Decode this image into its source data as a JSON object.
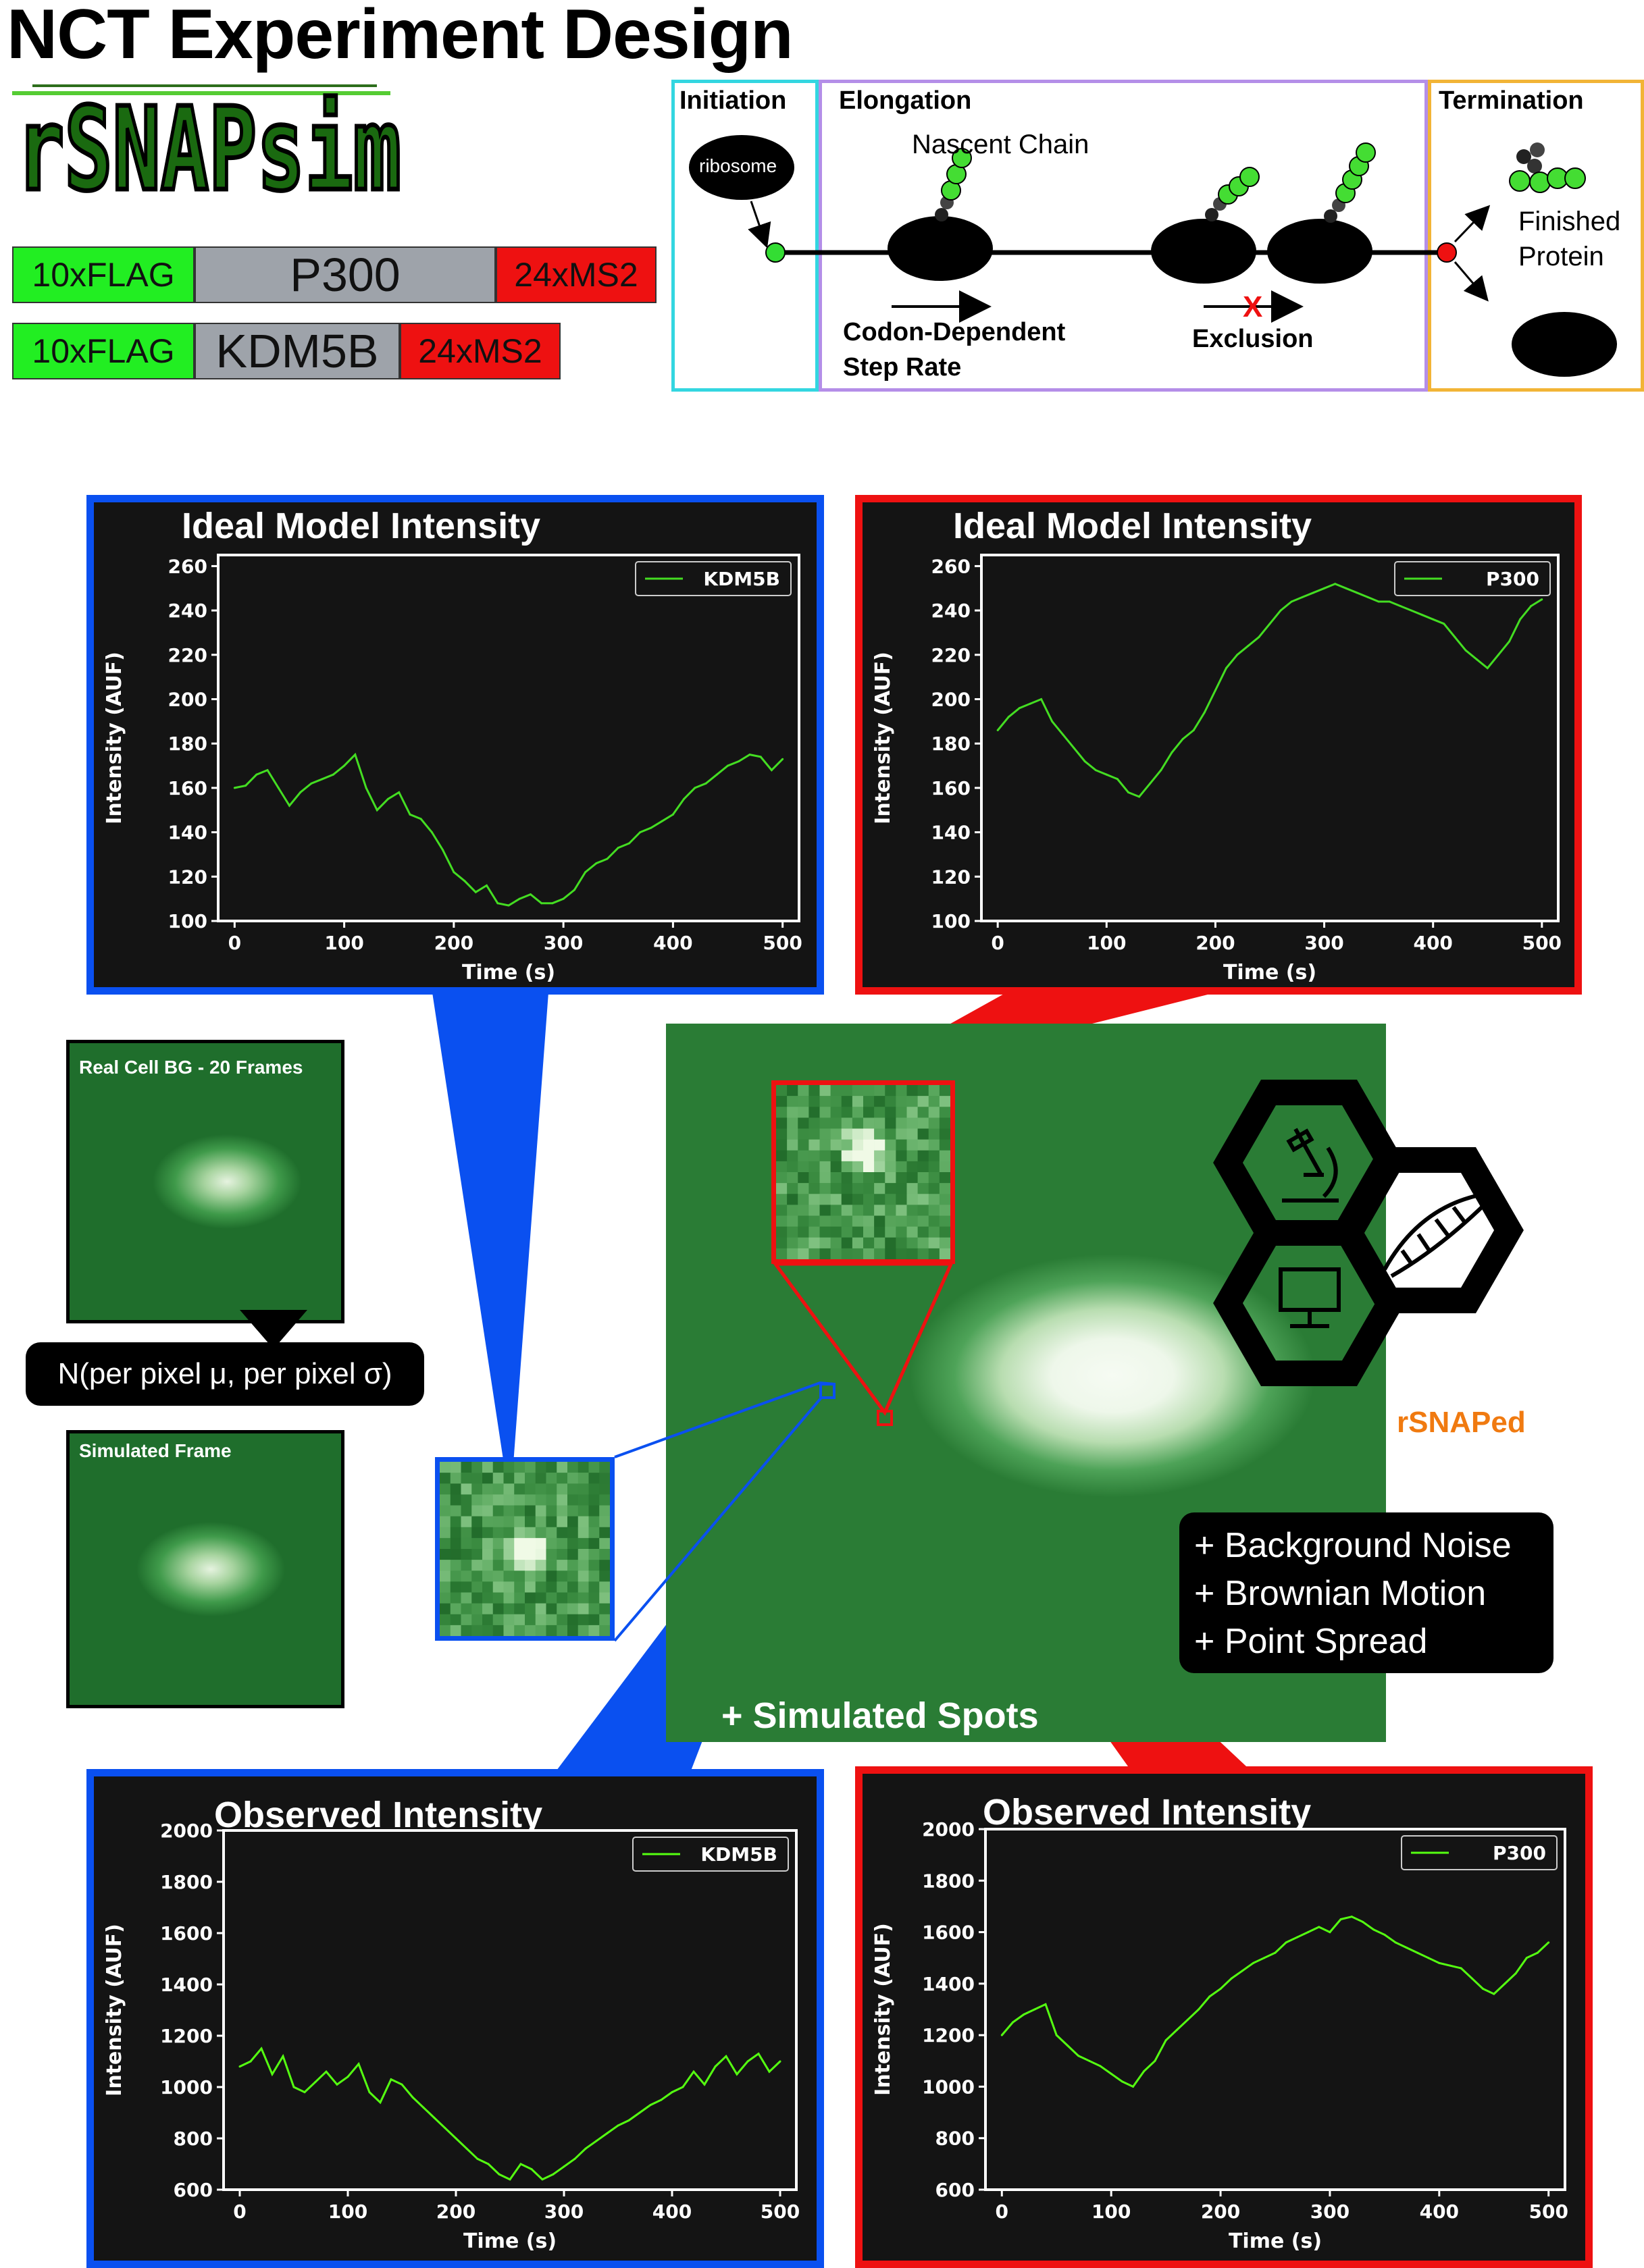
{
  "title": "NCT Experiment Design",
  "logo": {
    "text": "rSNAPsim"
  },
  "constructs": [
    {
      "segments": [
        {
          "label": "10xFLAG",
          "color": "#22ee22"
        },
        {
          "label": "P300",
          "color": "#9ea3aa"
        },
        {
          "label": "24xMS2",
          "color": "#ee1111"
        }
      ]
    },
    {
      "segments": [
        {
          "label": "10xFLAG",
          "color": "#22ee22"
        },
        {
          "label": "KDM5B",
          "color": "#9ea3aa"
        },
        {
          "label": "24xMS2",
          "color": "#ee1111"
        }
      ]
    }
  ],
  "translation": {
    "initiation": {
      "header": "Initiation",
      "ribosome_label": "ribosome",
      "color": "#33d6e0"
    },
    "elongation": {
      "header": "Elongation",
      "nascent_label": "Nascent Chain",
      "rate_label_line1": "Codon-Dependent",
      "rate_label_line2": "Step Rate",
      "exclusion_label": "Exclusion",
      "exclusion_mark": "X",
      "color": "#b48ee8"
    },
    "termination": {
      "header": "Termination",
      "protein_label_line1": "Finished",
      "protein_label_line2": "Protein",
      "color": "#f2b436"
    }
  },
  "panels": {
    "ideal_kdm5b": {
      "title": "Ideal Model Intensity",
      "frame_color": "#0a50f0"
    },
    "ideal_p300": {
      "title": "Ideal Model Intensity",
      "frame_color": "#ee1111"
    },
    "obs_kdm5b": {
      "title": "Observed Intensity",
      "frame_color": "#0a50f0"
    },
    "obs_p300": {
      "title": "Observed Intensity",
      "frame_color": "#ee1111"
    }
  },
  "background_images": {
    "real_cell_label": "Real Cell BG -  20 Frames",
    "simulated_label": "Simulated Frame",
    "noise_model": "N(per pixel μ, per pixel σ)"
  },
  "simulation": {
    "spots_label": "+ Simulated Spots",
    "additions": [
      "+ Background Noise",
      "+ Brownian Motion",
      "+ Point Spread"
    ],
    "brand": "rSNAPed",
    "brand_color": "#f07a10",
    "icons": [
      "microscope-icon",
      "dna-icon",
      "monitor-icon"
    ]
  },
  "chart_data": [
    {
      "id": "ideal_kdm5b",
      "type": "line",
      "title": "Ideal Model Intensity",
      "xlabel": "Time (s)",
      "ylabel": "Intensity (AUF)",
      "xlim": [
        -15,
        515
      ],
      "ylim": [
        100,
        265
      ],
      "xticks": [
        0,
        100,
        200,
        300,
        400,
        500
      ],
      "yticks": [
        100,
        120,
        140,
        160,
        180,
        200,
        220,
        240,
        260
      ],
      "legend": "top-right",
      "grid": false,
      "series": [
        {
          "name": "KDM5B",
          "color": "#44dd22",
          "x": [
            0,
            10,
            20,
            30,
            40,
            50,
            60,
            70,
            80,
            90,
            100,
            110,
            120,
            130,
            140,
            150,
            160,
            170,
            180,
            190,
            200,
            210,
            220,
            230,
            240,
            250,
            260,
            270,
            280,
            290,
            300,
            310,
            320,
            330,
            340,
            350,
            360,
            370,
            380,
            390,
            400,
            410,
            420,
            430,
            440,
            450,
            460,
            470,
            480,
            490,
            500
          ],
          "y": [
            160,
            161,
            166,
            168,
            160,
            152,
            158,
            162,
            164,
            166,
            170,
            175,
            160,
            150,
            155,
            158,
            148,
            146,
            140,
            132,
            122,
            118,
            113,
            116,
            108,
            107,
            110,
            112,
            108,
            108,
            110,
            114,
            122,
            126,
            128,
            133,
            135,
            140,
            142,
            145,
            148,
            155,
            160,
            162,
            166,
            170,
            172,
            175,
            174,
            168,
            173
          ]
        }
      ]
    },
    {
      "id": "ideal_p300",
      "type": "line",
      "title": "Ideal Model Intensity",
      "xlabel": "Time (s)",
      "ylabel": "Intensity (AUF)",
      "xlim": [
        -15,
        515
      ],
      "ylim": [
        100,
        265
      ],
      "xticks": [
        0,
        100,
        200,
        300,
        400,
        500
      ],
      "yticks": [
        100,
        120,
        140,
        160,
        180,
        200,
        220,
        240,
        260
      ],
      "legend": "top-right",
      "grid": false,
      "series": [
        {
          "name": "P300",
          "color": "#44dd22",
          "x": [
            0,
            10,
            20,
            30,
            40,
            50,
            60,
            70,
            80,
            90,
            100,
            110,
            120,
            130,
            140,
            150,
            160,
            170,
            180,
            190,
            200,
            210,
            220,
            230,
            240,
            250,
            260,
            270,
            280,
            290,
            300,
            310,
            320,
            330,
            340,
            350,
            360,
            370,
            380,
            390,
            400,
            410,
            420,
            430,
            440,
            450,
            460,
            470,
            480,
            490,
            500
          ],
          "y": [
            186,
            192,
            196,
            198,
            200,
            190,
            184,
            178,
            172,
            168,
            166,
            164,
            158,
            156,
            162,
            168,
            176,
            182,
            186,
            194,
            204,
            214,
            220,
            224,
            228,
            234,
            240,
            244,
            246,
            248,
            250,
            252,
            250,
            248,
            246,
            244,
            244,
            242,
            240,
            238,
            236,
            234,
            228,
            222,
            218,
            214,
            220,
            226,
            236,
            242,
            245
          ]
        }
      ]
    },
    {
      "id": "obs_kdm5b",
      "type": "line",
      "title": "Observed Intensity",
      "xlabel": "Time (s)",
      "ylabel": "Intensity (AUF)",
      "xlim": [
        -15,
        515
      ],
      "ylim": [
        600,
        2000
      ],
      "xticks": [
        0,
        100,
        200,
        300,
        400,
        500
      ],
      "yticks": [
        600,
        800,
        1000,
        1200,
        1400,
        1600,
        1800,
        2000
      ],
      "legend": "top-right",
      "grid": false,
      "series": [
        {
          "name": "KDM5B",
          "color": "#55ff11",
          "x": [
            0,
            10,
            20,
            30,
            40,
            50,
            60,
            70,
            80,
            90,
            100,
            110,
            120,
            130,
            140,
            150,
            160,
            170,
            180,
            190,
            200,
            210,
            220,
            230,
            240,
            250,
            260,
            270,
            280,
            290,
            300,
            310,
            320,
            330,
            340,
            350,
            360,
            370,
            380,
            390,
            400,
            410,
            420,
            430,
            440,
            450,
            460,
            470,
            480,
            490,
            500
          ],
          "y": [
            1080,
            1100,
            1150,
            1050,
            1120,
            1000,
            980,
            1020,
            1060,
            1010,
            1040,
            1090,
            980,
            940,
            1030,
            1010,
            960,
            920,
            880,
            840,
            800,
            760,
            720,
            700,
            660,
            640,
            700,
            680,
            640,
            660,
            690,
            720,
            760,
            790,
            820,
            850,
            870,
            900,
            930,
            950,
            980,
            1000,
            1060,
            1010,
            1080,
            1120,
            1050,
            1100,
            1130,
            1060,
            1100
          ]
        }
      ]
    },
    {
      "id": "obs_p300",
      "type": "line",
      "title": "Observed Intensity",
      "xlabel": "Time (s)",
      "ylabel": "Intensity (AUF)",
      "xlim": [
        -15,
        515
      ],
      "ylim": [
        600,
        2000
      ],
      "xticks": [
        0,
        100,
        200,
        300,
        400,
        500
      ],
      "yticks": [
        600,
        800,
        1000,
        1200,
        1400,
        1600,
        1800,
        2000
      ],
      "legend": "top-right",
      "grid": false,
      "series": [
        {
          "name": "P300",
          "color": "#55ff11",
          "x": [
            0,
            10,
            20,
            30,
            40,
            50,
            60,
            70,
            80,
            90,
            100,
            110,
            120,
            130,
            140,
            150,
            160,
            170,
            180,
            190,
            200,
            210,
            220,
            230,
            240,
            250,
            260,
            270,
            280,
            290,
            300,
            310,
            320,
            330,
            340,
            350,
            360,
            370,
            380,
            390,
            400,
            410,
            420,
            430,
            440,
            450,
            460,
            470,
            480,
            490,
            500
          ],
          "y": [
            1200,
            1250,
            1280,
            1300,
            1320,
            1200,
            1160,
            1120,
            1100,
            1080,
            1050,
            1020,
            1000,
            1060,
            1100,
            1180,
            1220,
            1260,
            1300,
            1350,
            1380,
            1420,
            1450,
            1480,
            1500,
            1520,
            1560,
            1580,
            1600,
            1620,
            1600,
            1650,
            1660,
            1640,
            1610,
            1590,
            1560,
            1540,
            1520,
            1500,
            1480,
            1470,
            1460,
            1420,
            1380,
            1360,
            1400,
            1440,
            1500,
            1520,
            1560
          ]
        }
      ]
    }
  ]
}
